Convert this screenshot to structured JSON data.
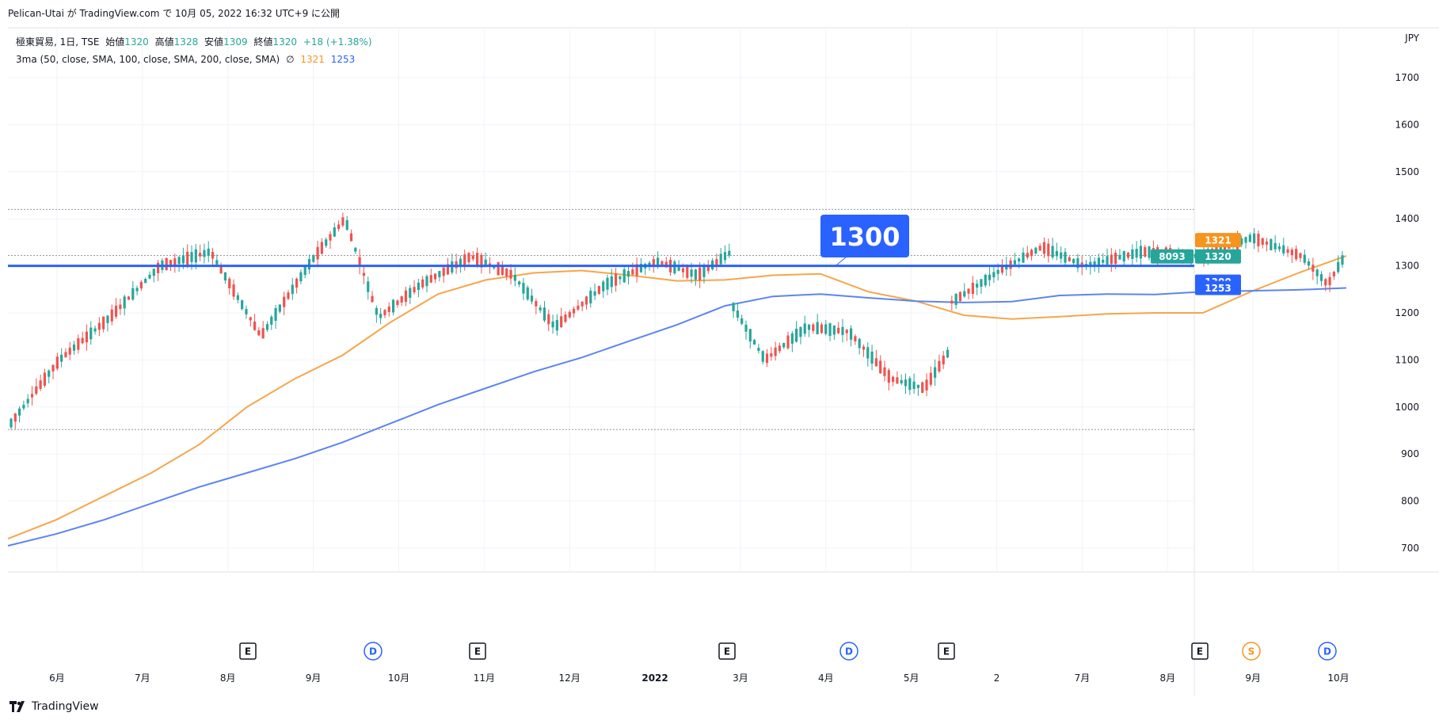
{
  "header": {
    "publish_line": "Pelican-Utai が TradingView.com で 10月 05, 2022 16:32 UTC+9 に公開"
  },
  "legend": {
    "symbol": "極東貿易, 1日, TSE",
    "open_label": "始値",
    "open": "1320",
    "high_label": "高値",
    "high": "1328",
    "low_label": "安値",
    "low": "1309",
    "close_label": "終値",
    "close": "1320",
    "change": "+18 (+1.38%)",
    "indicator": "3ma (50, close, SMA, 100, close, SMA, 200, close, SMA)",
    "indicator_symbol": "∅",
    "ma1_value": "1321",
    "ma2_value": "1253"
  },
  "brand": {
    "name": "TradingView"
  },
  "colors": {
    "up": "#26a69a",
    "down": "#ef5350",
    "ma_orange": "#f7a54a",
    "ma_blue": "#5b85f0",
    "hline": "#2962ff",
    "label_blue": "#2962ff",
    "label_orange": "#f7941d",
    "label_green": "#26a69a"
  },
  "chart_data": {
    "type": "candlestick",
    "currency": "JPY",
    "ylim": [
      680,
      1760
    ],
    "y_ticks": [
      700,
      800,
      900,
      1000,
      1100,
      1200,
      1300,
      1400,
      1500,
      1600,
      1700
    ],
    "x_ticks": [
      "6月",
      "7月",
      "8月",
      "9月",
      "10月",
      "11月",
      "12月",
      "2022",
      "3月",
      "4月",
      "5月",
      "2",
      "7月",
      "8月",
      "9月",
      "10月"
    ],
    "horizontal_line": {
      "value": 1300,
      "label": "1300"
    },
    "dotted_levels": [
      1420,
      1322,
      952
    ],
    "price_labels": [
      {
        "value": 1321,
        "text": "1321",
        "role": "ma-orange"
      },
      {
        "value": 1320,
        "text": "1320",
        "role": "last-price"
      },
      {
        "value": 1300,
        "text": "1300",
        "role": "hline"
      },
      {
        "value": 1253,
        "text": "1253",
        "role": "ma-blue"
      }
    ],
    "volume_label": "8093",
    "events": [
      "E",
      "D",
      "E",
      "E",
      "D",
      "E",
      "E",
      "S",
      "D"
    ],
    "ma_orange": [
      720,
      760,
      810,
      860,
      920,
      1000,
      1060,
      1110,
      1180,
      1240,
      1270,
      1285,
      1290,
      1280,
      1268,
      1270,
      1280,
      1283,
      1245,
      1225,
      1195,
      1187,
      1192,
      1198,
      1200,
      1200,
      1245,
      1285,
      1321
    ],
    "ma_blue": [
      705,
      730,
      760,
      795,
      830,
      860,
      890,
      925,
      965,
      1005,
      1040,
      1075,
      1105,
      1140,
      1175,
      1215,
      1235,
      1240,
      1232,
      1225,
      1222,
      1224,
      1237,
      1240,
      1239,
      1245,
      1247,
      1249,
      1253
    ],
    "candle_segments": [
      {
        "from": 960,
        "to": 1100,
        "n": 12
      },
      {
        "from": 1100,
        "to": 1190,
        "n": 12
      },
      {
        "from": 1190,
        "to": 1300,
        "n": 12
      },
      {
        "from": 1300,
        "to": 1330,
        "n": 12
      },
      {
        "from": 1330,
        "to": 1150,
        "n": 12
      },
      {
        "from": 1150,
        "to": 1310,
        "n": 12
      },
      {
        "from": 1310,
        "to": 1400,
        "n": 8
      },
      {
        "from": 1400,
        "to": 1190,
        "n": 8
      },
      {
        "from": 1190,
        "to": 1260,
        "n": 10
      },
      {
        "from": 1260,
        "to": 1320,
        "n": 12
      },
      {
        "from": 1320,
        "to": 1280,
        "n": 10
      },
      {
        "from": 1280,
        "to": 1170,
        "n": 10
      },
      {
        "from": 1170,
        "to": 1260,
        "n": 12
      },
      {
        "from": 1260,
        "to": 1310,
        "n": 12
      },
      {
        "from": 1310,
        "to": 1280,
        "n": 10
      },
      {
        "from": 1280,
        "to": 1330,
        "n": 8
      },
      {
        "from": 1220,
        "to": 1100,
        "n": 8
      },
      {
        "from": 1100,
        "to": 1170,
        "n": 10
      },
      {
        "from": 1170,
        "to": 1160,
        "n": 10
      },
      {
        "from": 1160,
        "to": 1060,
        "n": 10
      },
      {
        "from": 1060,
        "to": 1040,
        "n": 8
      },
      {
        "from": 1040,
        "to": 1120,
        "n": 6
      },
      {
        "from": 1220,
        "to": 1290,
        "n": 12
      },
      {
        "from": 1290,
        "to": 1340,
        "n": 10
      },
      {
        "from": 1340,
        "to": 1300,
        "n": 10
      },
      {
        "from": 1300,
        "to": 1330,
        "n": 14
      },
      {
        "from": 1330,
        "to": 1320,
        "n": 14
      },
      {
        "from": 1320,
        "to": 1360,
        "n": 12
      },
      {
        "from": 1360,
        "to": 1320,
        "n": 12
      },
      {
        "from": 1320,
        "to": 1260,
        "n": 6
      },
      {
        "from": 1260,
        "to": 1320,
        "n": 4
      }
    ]
  }
}
